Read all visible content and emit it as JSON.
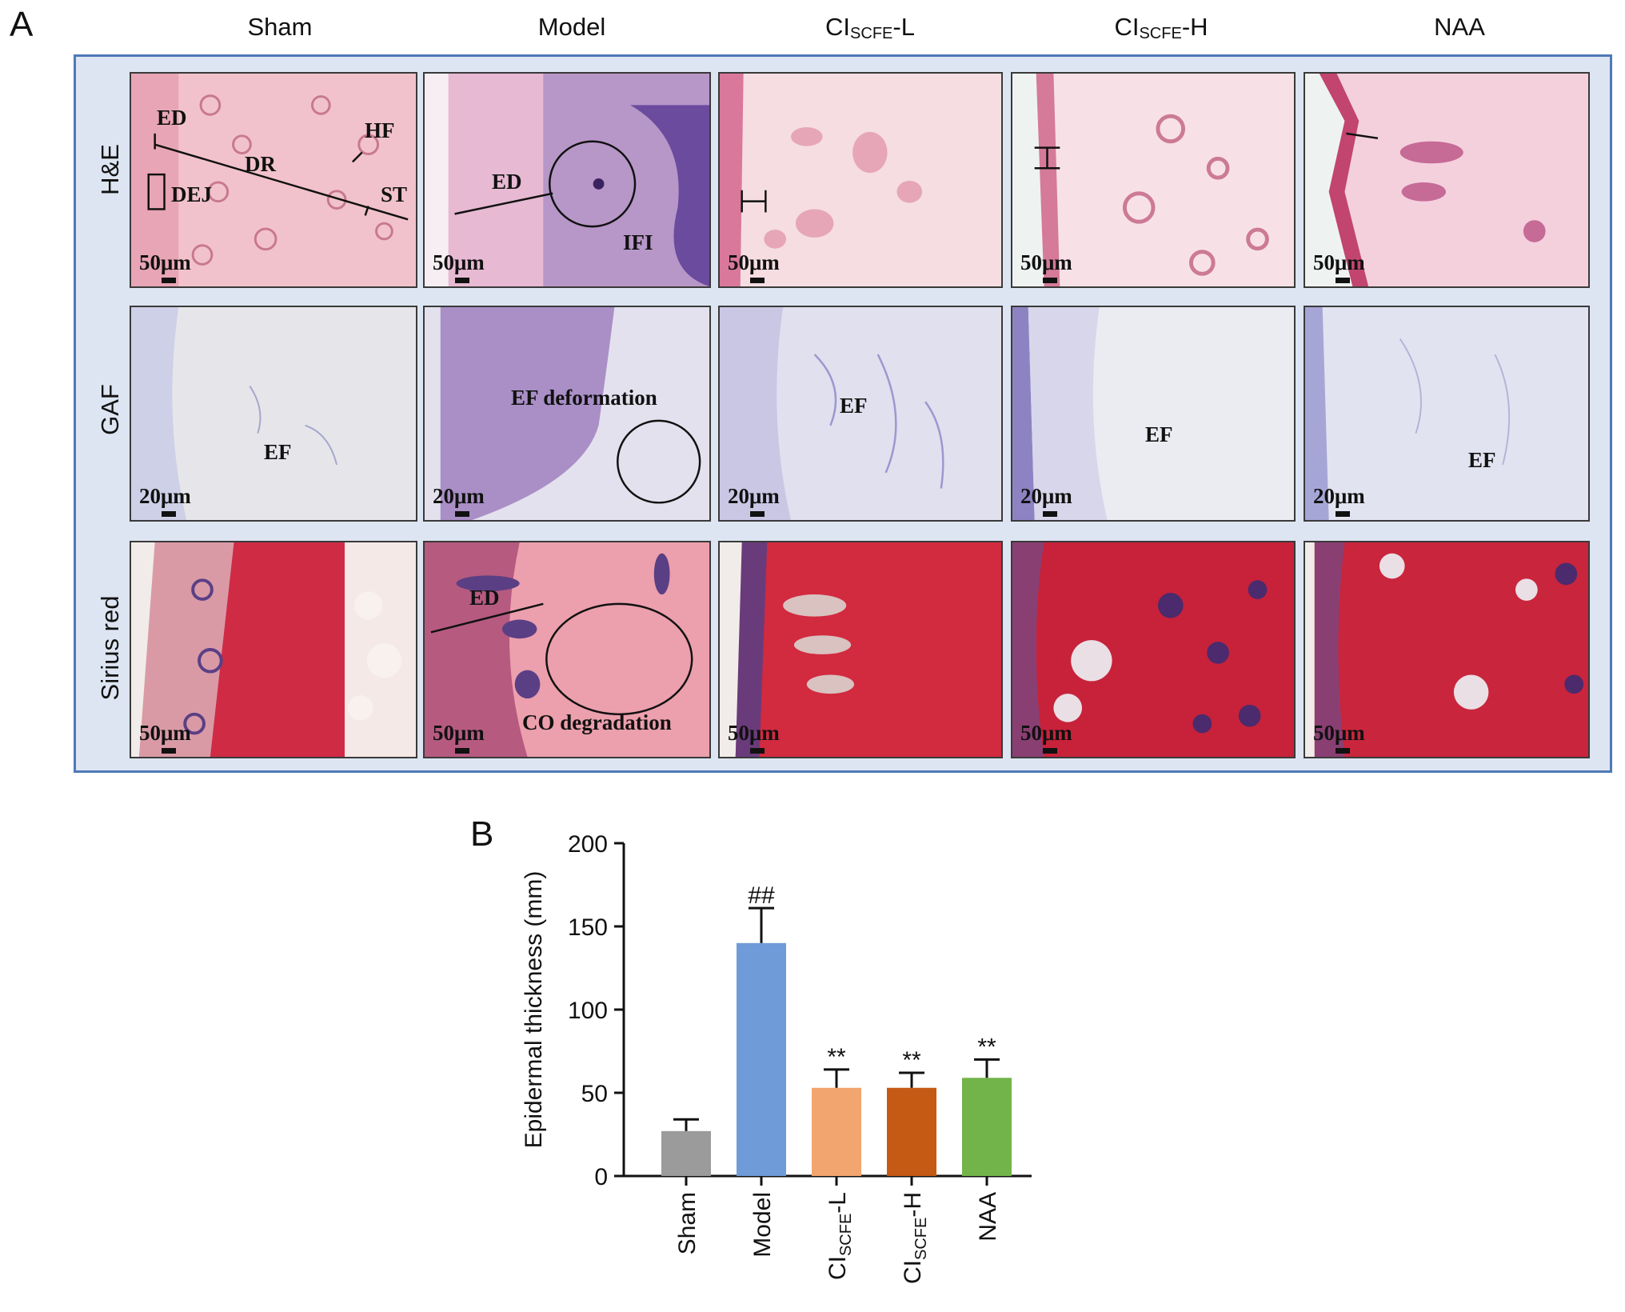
{
  "panel_a": {
    "letter": "A",
    "columns": [
      {
        "main": "Sham",
        "sub": "",
        "suffix": ""
      },
      {
        "main": "Model",
        "sub": "",
        "suffix": ""
      },
      {
        "main": "CI",
        "sub": "SCFE",
        "suffix": "-L"
      },
      {
        "main": "CI",
        "sub": "SCFE",
        "suffix": "-H"
      },
      {
        "main": "NAA",
        "sub": "",
        "suffix": ""
      }
    ],
    "rows": [
      "H&E",
      "GAF",
      "Sirius red"
    ],
    "scale_bars": {
      "he": "50μm",
      "gaf": "20μm",
      "sirius": "50μm"
    },
    "annotations": {
      "he_sham": [
        "ED",
        "HF",
        "DR",
        "DEJ",
        "ST"
      ],
      "he_model": [
        "ED",
        "IFI"
      ],
      "gaf_sham": "EF",
      "gaf_model": "EF deformation",
      "gaf_l": "EF",
      "gaf_h": "EF",
      "gaf_naa": "EF",
      "sirius_model": [
        "ED",
        "CO degradation"
      ]
    }
  },
  "panel_b": {
    "letter": "B"
  },
  "chart_data": {
    "type": "bar",
    "ylabel": "Epidermal thickness (mm)",
    "ylim": [
      0,
      200
    ],
    "yticks": [
      "0",
      "50",
      "100",
      "150",
      "200"
    ],
    "categories": [
      {
        "main": "Sham",
        "sub": "",
        "suffix": ""
      },
      {
        "main": "Model",
        "sub": "",
        "suffix": ""
      },
      {
        "main": "CI",
        "sub": "SCFE",
        "suffix": "-L"
      },
      {
        "main": "CI",
        "sub": "SCFE",
        "suffix": "-H"
      },
      {
        "main": "NAA",
        "sub": "",
        "suffix": ""
      }
    ],
    "values": [
      27,
      140,
      53,
      53,
      59
    ],
    "errors": [
      7,
      21,
      11,
      9,
      11
    ],
    "significance": [
      "",
      "##",
      "**",
      "**",
      "**"
    ],
    "colors": [
      "#9b9b9b",
      "#6f9bd8",
      "#f2a56e",
      "#c55a15",
      "#72b44a"
    ]
  }
}
